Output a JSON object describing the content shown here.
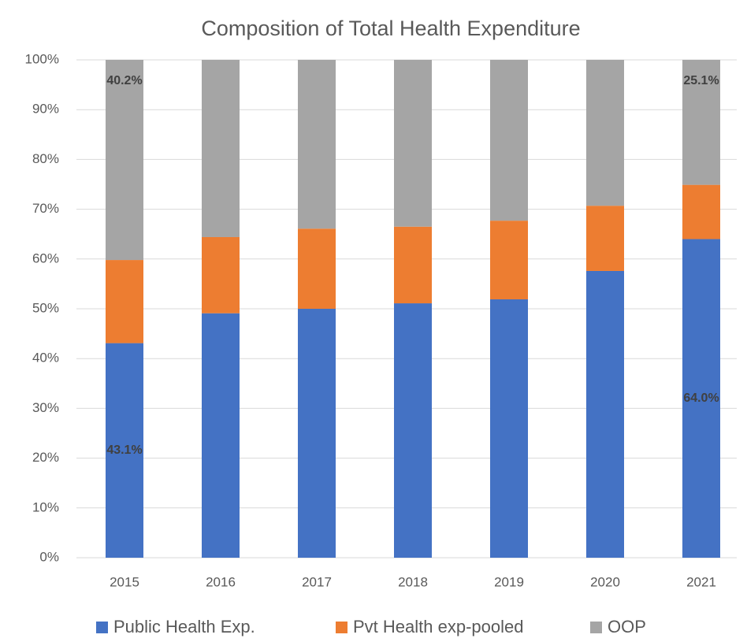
{
  "chart_data": {
    "type": "stacked_bar",
    "title": "Composition of Total Health Expenditure",
    "categories": [
      "2015",
      "2016",
      "2017",
      "2018",
      "2019",
      "2020",
      "2021"
    ],
    "series": [
      {
        "name": "Public Health Exp.",
        "color": "#4472c4",
        "values": [
          43.1,
          49.1,
          50.0,
          51.1,
          51.9,
          57.6,
          64.0
        ],
        "value_labels": [
          "43.1%",
          null,
          null,
          null,
          null,
          null,
          "64.0%"
        ]
      },
      {
        "name": "Pvt Health exp-pooled",
        "color": "#ed7d31",
        "values": [
          16.7,
          15.3,
          16.1,
          15.4,
          15.8,
          13.1,
          10.9
        ]
      },
      {
        "name": "OOP",
        "color": "#a5a5a5",
        "values": [
          40.2,
          35.6,
          33.9,
          33.5,
          32.3,
          29.3,
          25.1
        ],
        "value_labels": [
          "40.2%",
          null,
          null,
          null,
          null,
          null,
          "25.1%"
        ]
      }
    ],
    "ylim": [
      0,
      100
    ],
    "yticks": [
      {
        "value": 0,
        "label": "0%"
      },
      {
        "value": 10,
        "label": "10%"
      },
      {
        "value": 20,
        "label": "20%"
      },
      {
        "value": 30,
        "label": "30%"
      },
      {
        "value": 40,
        "label": "40%"
      },
      {
        "value": 50,
        "label": "50%"
      },
      {
        "value": 60,
        "label": "60%"
      },
      {
        "value": 70,
        "label": "70%"
      },
      {
        "value": 80,
        "label": "80%"
      },
      {
        "value": 90,
        "label": "90%"
      },
      {
        "value": 100,
        "label": "100%"
      }
    ],
    "grid": true,
    "legend": "bottom"
  }
}
